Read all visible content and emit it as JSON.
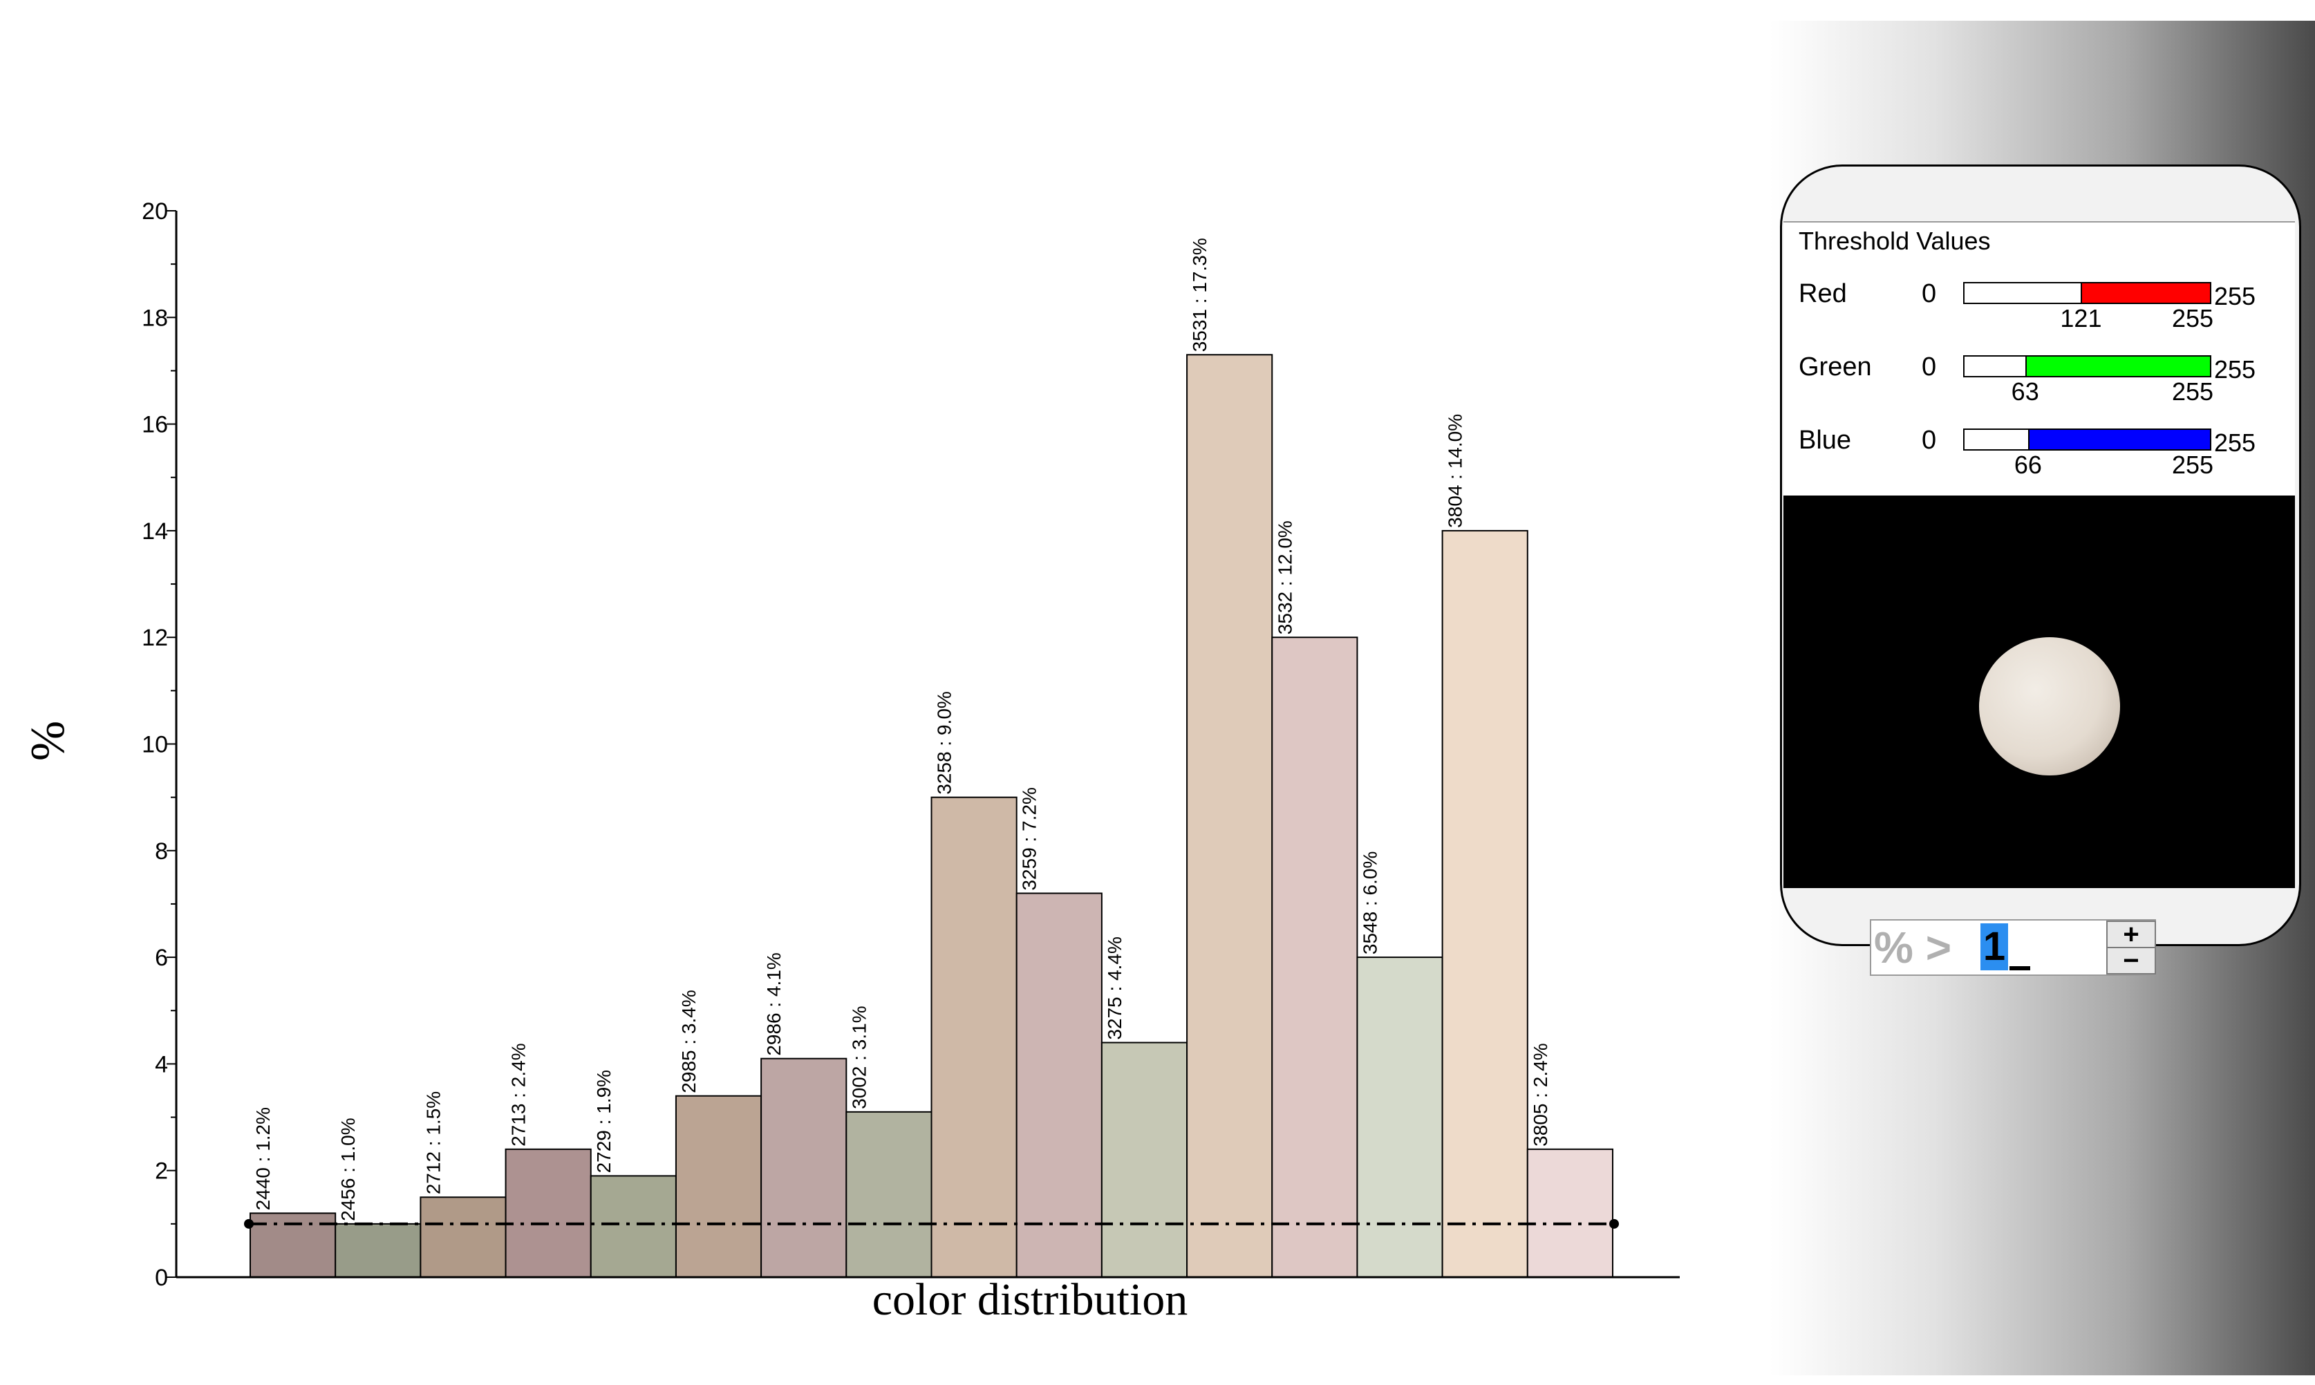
{
  "chart_data": {
    "type": "bar",
    "title": "",
    "xlabel": "color distribution",
    "ylabel": "%",
    "ylim": [
      0,
      20
    ],
    "yticks": [
      0,
      2,
      4,
      6,
      8,
      10,
      12,
      14,
      16,
      18,
      20
    ],
    "threshold_line": 1,
    "grid": false,
    "bars": [
      {
        "label": "2440 : 1.2%",
        "value": 1.2,
        "color": "#a28b88"
      },
      {
        "label": "2456 : 1.0%",
        "value": 1.0,
        "color": "#989c89"
      },
      {
        "label": "2712 : 1.5%",
        "value": 1.5,
        "color": "#b09a88"
      },
      {
        "label": "2713 : 2.4%",
        "value": 2.4,
        "color": "#ad9291"
      },
      {
        "label": "2729 : 1.9%",
        "value": 1.9,
        "color": "#a5a892"
      },
      {
        "label": "2985 : 3.4%",
        "value": 3.4,
        "color": "#bba493"
      },
      {
        "label": "2986 : 4.1%",
        "value": 4.1,
        "color": "#bda6a4"
      },
      {
        "label": "3002 : 3.1%",
        "value": 3.1,
        "color": "#b1b3a0"
      },
      {
        "label": "3258 : 9.0%",
        "value": 9.0,
        "color": "#cfb9a7"
      },
      {
        "label": "3259 : 7.2%",
        "value": 7.2,
        "color": "#cdb5b3"
      },
      {
        "label": "3275 : 4.4%",
        "value": 4.4,
        "color": "#c6c8b5"
      },
      {
        "label": "3531 : 17.3%",
        "value": 17.3,
        "color": "#dfcbb9"
      },
      {
        "label": "3532 : 12.0%",
        "value": 12.0,
        "color": "#dec7c4"
      },
      {
        "label": "3548 : 6.0%",
        "value": 6.0,
        "color": "#d5dacb"
      },
      {
        "label": "3804 : 14.0%",
        "value": 14.0,
        "color": "#eedbc9"
      },
      {
        "label": "3805 : 2.4%",
        "value": 2.4,
        "color": "#ecd9d8"
      }
    ]
  },
  "panel": {
    "title": "Threshold Values",
    "channels": [
      {
        "name": "Red",
        "min": "0",
        "max": "255",
        "low": 121,
        "high": 255,
        "low_label": "121",
        "high_label": "255",
        "color": "#ff0000"
      },
      {
        "name": "Green",
        "min": "0",
        "max": "255",
        "low": 63,
        "high": 255,
        "low_label": "63",
        "high_label": "255",
        "color": "#00ff00"
      },
      {
        "name": "Blue",
        "min": "0",
        "max": "255",
        "low": 66,
        "high": 255,
        "low_label": "66",
        "high_label": "255",
        "color": "#0000ff"
      }
    ],
    "percent_filter": {
      "prefix": "% >",
      "value": "1",
      "plus": "+",
      "minus": "−"
    }
  }
}
